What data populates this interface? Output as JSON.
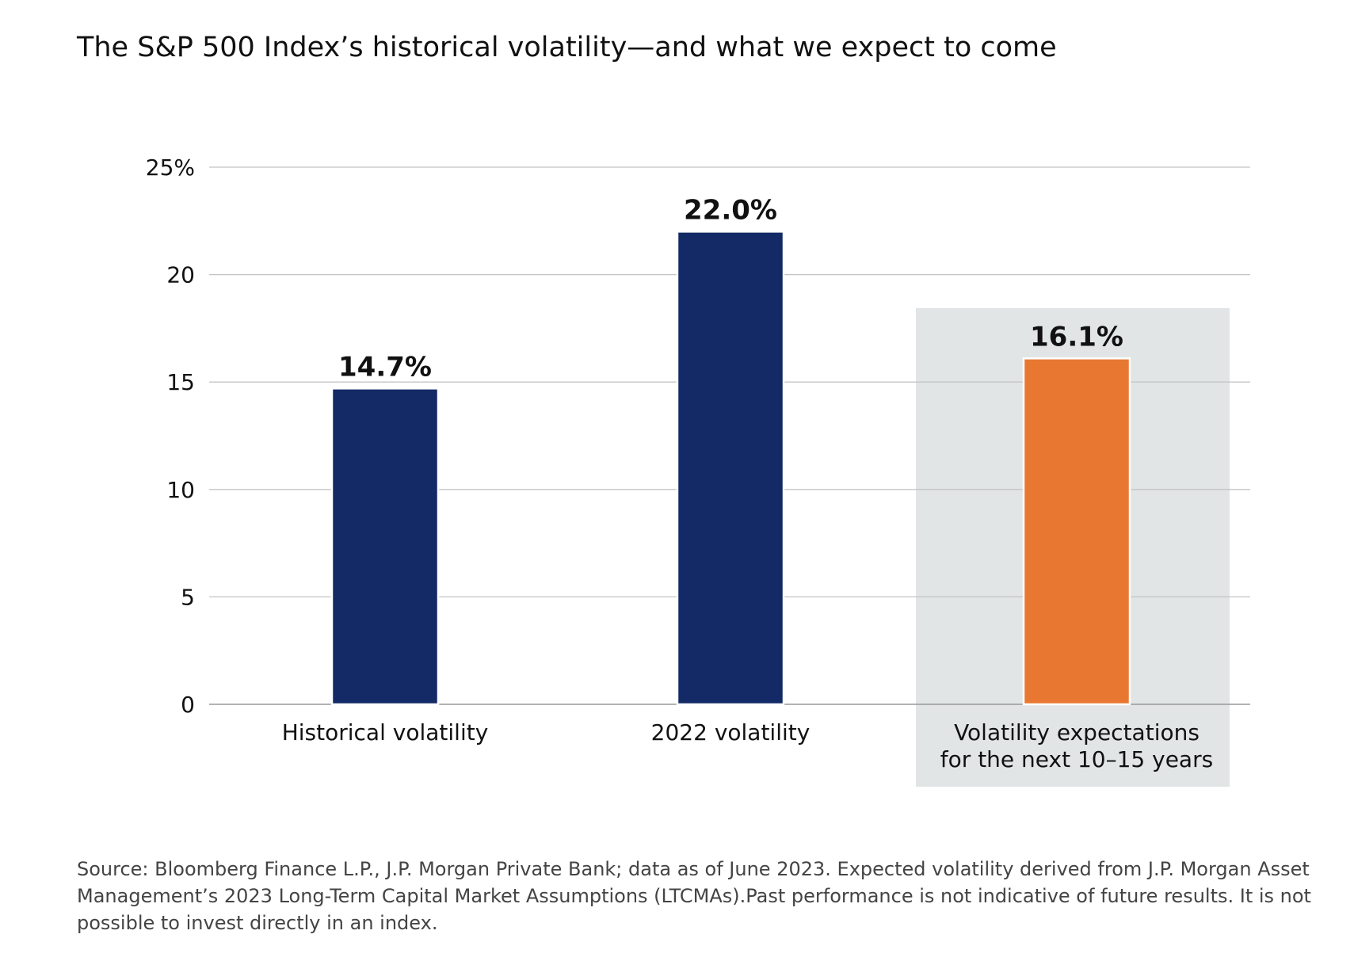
{
  "chart_data": {
    "type": "bar",
    "title": "The S&P 500 Index’s historical volatility—and what we expect to come",
    "categories": [
      [
        "Historical volatility"
      ],
      [
        "2022 volatility"
      ],
      [
        "Volatility expectations",
        "for the next 10–15 years"
      ]
    ],
    "values": [
      14.7,
      22.0,
      16.1
    ],
    "value_labels": [
      "14.7%",
      "22.0%",
      "16.1%"
    ],
    "bar_colors": [
      "#142a66",
      "#142a66",
      "#e87831"
    ],
    "highlight_category_index": 2,
    "highlight_color": "#e1e5e6",
    "yticks": [
      {
        "value": 0,
        "label": "0"
      },
      {
        "value": 5,
        "label": "5"
      },
      {
        "value": 10,
        "label": "10"
      },
      {
        "value": 15,
        "label": "15"
      },
      {
        "value": 20,
        "label": "20"
      },
      {
        "value": 25,
        "label": "25%"
      }
    ],
    "ylim": [
      0,
      25
    ],
    "grid": true,
    "xlabel": "",
    "ylabel": ""
  },
  "source_note": "Source: Bloomberg Finance L.P., J.P. Morgan Private Bank; data as of June 2023. Expected volatility derived from J.P. Morgan Asset Management’s 2023 Long-Term Capital Market Assumptions (LTCMAs).Past performance is not indicative of future results. It is not possible to invest directly in an index."
}
